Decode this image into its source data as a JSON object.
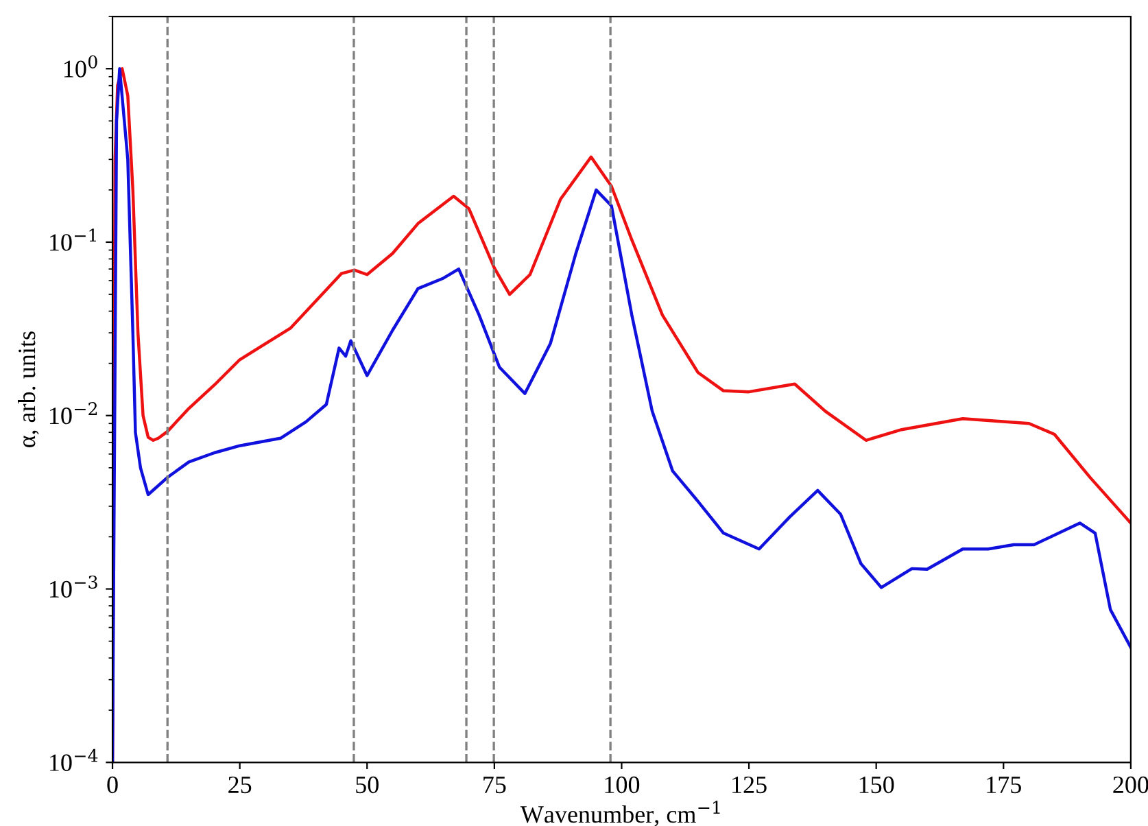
{
  "chart_data": {
    "type": "line",
    "xlabel": "Wavenumber, cm$^{−1}$",
    "ylabel": "α, arb. units",
    "log": "y",
    "grid": false,
    "legend": false,
    "marker": "none",
    "line_style": "solid",
    "xlim": [
      0,
      200
    ],
    "xticks": [
      0,
      25,
      50,
      75,
      100,
      125,
      150,
      175,
      200
    ],
    "ylim": [
      0.0001,
      2
    ],
    "yticks": [
      {
        "value": 0.0001,
        "label": "10$^{−4}$"
      },
      {
        "value": 0.001,
        "label": "10$^{−3}$"
      },
      {
        "value": 0.01,
        "label": "10$^{−2}$"
      },
      {
        "value": 0.1,
        "label": "10$^{−1}$"
      },
      {
        "value": 1,
        "label": "10$^{0}$"
      }
    ],
    "ref_lines": [
      {
        "axis": "x",
        "value": 10.8,
        "color": "#808080",
        "line_style": "dashed"
      },
      {
        "axis": "x",
        "value": 47.4,
        "color": "#808080",
        "line_style": "dashed"
      },
      {
        "axis": "x",
        "value": 69.5,
        "color": "#808080",
        "line_style": "dashed"
      },
      {
        "axis": "x",
        "value": 74.9,
        "color": "#808080",
        "line_style": "dashed"
      },
      {
        "axis": "x",
        "value": 97.8,
        "color": "#808080",
        "line_style": "dashed"
      }
    ],
    "series": [
      {
        "color": "#ee1111",
        "x": [
          0,
          0.5,
          1.0,
          1.9,
          3,
          4,
          5,
          6,
          7,
          8,
          9,
          10.8,
          15,
          20,
          25,
          35,
          45,
          47.5,
          50,
          55,
          60,
          67,
          70,
          75,
          78,
          82,
          88,
          94,
          98,
          102,
          108,
          115,
          120,
          125,
          134,
          140,
          148,
          155,
          167,
          180,
          185,
          192,
          200
        ],
        "values": [
          0.0001,
          0.3,
          0.8,
          1.0,
          0.7,
          0.2,
          0.03,
          0.01,
          0.0075,
          0.0072,
          0.0074,
          0.0081,
          0.011,
          0.015,
          0.021,
          0.032,
          0.066,
          0.069,
          0.065,
          0.086,
          0.128,
          0.184,
          0.156,
          0.071,
          0.05,
          0.065,
          0.177,
          0.31,
          0.21,
          0.103,
          0.038,
          0.0177,
          0.0139,
          0.0137,
          0.0152,
          0.0106,
          0.0072,
          0.0083,
          0.0096,
          0.009,
          0.0078,
          0.0044,
          0.0024
        ]
      },
      {
        "color": "#1111dd",
        "x": [
          0,
          0.8,
          1.4,
          3,
          4,
          4.5,
          5.5,
          7,
          10.8,
          15,
          20,
          25,
          33,
          38,
          42,
          44.5,
          45.8,
          46.8,
          50,
          55,
          60,
          65,
          68,
          72,
          76,
          81,
          86,
          91,
          95,
          98,
          102,
          106,
          110,
          115,
          120,
          127,
          133,
          138.5,
          143,
          147,
          151,
          157,
          160,
          167,
          172,
          177,
          181,
          190,
          193,
          196,
          200
        ],
        "values": [
          0.0001,
          0.5,
          1.0,
          0.3,
          0.03,
          0.008,
          0.005,
          0.0035,
          0.0044,
          0.0054,
          0.0061,
          0.0067,
          0.0074,
          0.0092,
          0.0116,
          0.0245,
          0.022,
          0.027,
          0.017,
          0.031,
          0.054,
          0.062,
          0.07,
          0.038,
          0.019,
          0.0134,
          0.026,
          0.086,
          0.2,
          0.162,
          0.038,
          0.0106,
          0.0048,
          0.0032,
          0.0021,
          0.0017,
          0.0026,
          0.0037,
          0.0027,
          0.0014,
          0.00102,
          0.00131,
          0.0013,
          0.0017,
          0.0017,
          0.0018,
          0.0018,
          0.0024,
          0.0021,
          0.00076,
          0.00046
        ]
      }
    ]
  }
}
